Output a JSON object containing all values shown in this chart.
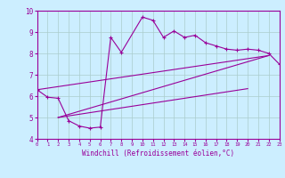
{
  "xlabel": "Windchill (Refroidissement éolien,°C)",
  "background_color": "#cceeff",
  "line_color": "#990099",
  "grid_color": "#aacccc",
  "xlim": [
    0,
    23
  ],
  "ylim": [
    4,
    10
  ],
  "xticks": [
    0,
    1,
    2,
    3,
    4,
    5,
    6,
    7,
    8,
    9,
    10,
    11,
    12,
    13,
    14,
    15,
    16,
    17,
    18,
    19,
    20,
    21,
    22,
    23
  ],
  "yticks": [
    4,
    5,
    6,
    7,
    8,
    9,
    10
  ],
  "main_x": [
    0,
    1,
    2,
    3,
    4,
    5,
    6,
    7,
    8,
    10,
    11,
    12,
    13,
    14,
    15,
    16,
    17,
    18,
    19,
    20,
    21,
    22,
    23
  ],
  "main_y": [
    6.3,
    5.95,
    5.9,
    4.85,
    4.6,
    4.5,
    4.55,
    8.75,
    8.05,
    9.7,
    9.55,
    8.75,
    9.05,
    8.75,
    8.85,
    8.5,
    8.35,
    8.2,
    8.15,
    8.2,
    8.15,
    8.0,
    7.5
  ],
  "line1_x": [
    0,
    22
  ],
  "line1_y": [
    6.3,
    7.9
  ],
  "line2_x": [
    2,
    22
  ],
  "line2_y": [
    5.0,
    7.9
  ],
  "line3_x": [
    2,
    20
  ],
  "line3_y": [
    5.0,
    6.35
  ]
}
